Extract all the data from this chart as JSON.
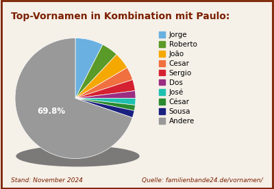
{
  "title": "Top-Vornamen in Kombination mit Paulo:",
  "labels": [
    "Jorge",
    "Roberto",
    "João",
    "Cesar",
    "Sergio",
    "Dos",
    "José",
    "César",
    "Sousa",
    "Andere"
  ],
  "values": [
    7.5,
    4.5,
    4.5,
    3.5,
    3.0,
    2.0,
    1.8,
    1.5,
    1.9,
    69.8
  ],
  "colors": [
    "#6ab0e0",
    "#5a9a28",
    "#f5a800",
    "#f07040",
    "#d42030",
    "#9b2d82",
    "#20c0b0",
    "#2a8a30",
    "#1a2080",
    "#999999"
  ],
  "pct_label": "69.8%",
  "footer_left": "Stand: November 2024",
  "footer_right": "Quelle: familienbande24.de/vornamen/",
  "title_color": "#7b2000",
  "footer_color": "#7b2000",
  "bg_color": "#f5f0e8",
  "border_color": "#7b2000",
  "startangle": 90,
  "shadow_color": "#666666"
}
